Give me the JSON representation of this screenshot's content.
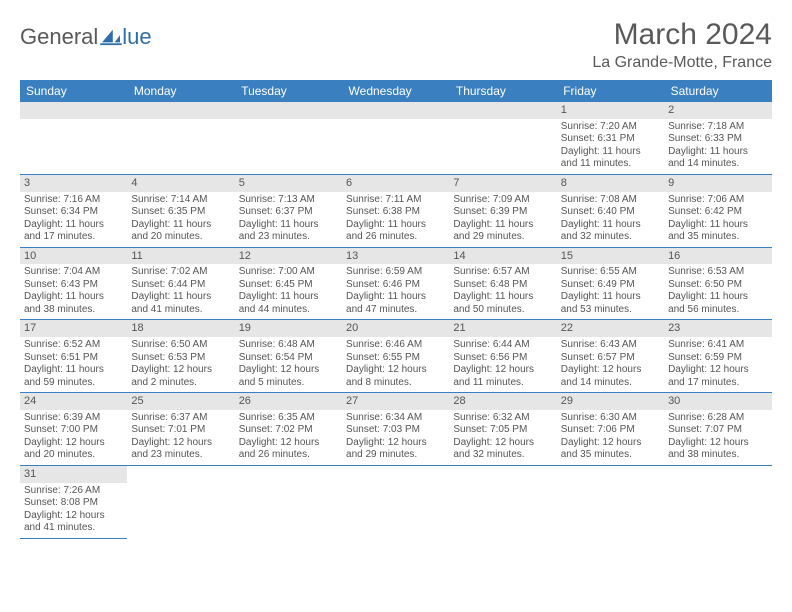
{
  "logo": {
    "general": "General",
    "blue": "lue"
  },
  "header": {
    "month": "March 2024",
    "location": "La Grande-Motte, France"
  },
  "colors": {
    "header_bg": "#3a7fbf",
    "header_text": "#ffffff",
    "daynum_bg": "#e6e6e6",
    "body_text": "#555555",
    "rule": "#3a7fbf"
  },
  "day_names": [
    "Sunday",
    "Monday",
    "Tuesday",
    "Wednesday",
    "Thursday",
    "Friday",
    "Saturday"
  ],
  "weeks": [
    [
      null,
      null,
      null,
      null,
      null,
      {
        "n": "1",
        "sr": "Sunrise: 7:20 AM",
        "ss": "Sunset: 6:31 PM",
        "d1": "Daylight: 11 hours",
        "d2": "and 11 minutes."
      },
      {
        "n": "2",
        "sr": "Sunrise: 7:18 AM",
        "ss": "Sunset: 6:33 PM",
        "d1": "Daylight: 11 hours",
        "d2": "and 14 minutes."
      }
    ],
    [
      {
        "n": "3",
        "sr": "Sunrise: 7:16 AM",
        "ss": "Sunset: 6:34 PM",
        "d1": "Daylight: 11 hours",
        "d2": "and 17 minutes."
      },
      {
        "n": "4",
        "sr": "Sunrise: 7:14 AM",
        "ss": "Sunset: 6:35 PM",
        "d1": "Daylight: 11 hours",
        "d2": "and 20 minutes."
      },
      {
        "n": "5",
        "sr": "Sunrise: 7:13 AM",
        "ss": "Sunset: 6:37 PM",
        "d1": "Daylight: 11 hours",
        "d2": "and 23 minutes."
      },
      {
        "n": "6",
        "sr": "Sunrise: 7:11 AM",
        "ss": "Sunset: 6:38 PM",
        "d1": "Daylight: 11 hours",
        "d2": "and 26 minutes."
      },
      {
        "n": "7",
        "sr": "Sunrise: 7:09 AM",
        "ss": "Sunset: 6:39 PM",
        "d1": "Daylight: 11 hours",
        "d2": "and 29 minutes."
      },
      {
        "n": "8",
        "sr": "Sunrise: 7:08 AM",
        "ss": "Sunset: 6:40 PM",
        "d1": "Daylight: 11 hours",
        "d2": "and 32 minutes."
      },
      {
        "n": "9",
        "sr": "Sunrise: 7:06 AM",
        "ss": "Sunset: 6:42 PM",
        "d1": "Daylight: 11 hours",
        "d2": "and 35 minutes."
      }
    ],
    [
      {
        "n": "10",
        "sr": "Sunrise: 7:04 AM",
        "ss": "Sunset: 6:43 PM",
        "d1": "Daylight: 11 hours",
        "d2": "and 38 minutes."
      },
      {
        "n": "11",
        "sr": "Sunrise: 7:02 AM",
        "ss": "Sunset: 6:44 PM",
        "d1": "Daylight: 11 hours",
        "d2": "and 41 minutes."
      },
      {
        "n": "12",
        "sr": "Sunrise: 7:00 AM",
        "ss": "Sunset: 6:45 PM",
        "d1": "Daylight: 11 hours",
        "d2": "and 44 minutes."
      },
      {
        "n": "13",
        "sr": "Sunrise: 6:59 AM",
        "ss": "Sunset: 6:46 PM",
        "d1": "Daylight: 11 hours",
        "d2": "and 47 minutes."
      },
      {
        "n": "14",
        "sr": "Sunrise: 6:57 AM",
        "ss": "Sunset: 6:48 PM",
        "d1": "Daylight: 11 hours",
        "d2": "and 50 minutes."
      },
      {
        "n": "15",
        "sr": "Sunrise: 6:55 AM",
        "ss": "Sunset: 6:49 PM",
        "d1": "Daylight: 11 hours",
        "d2": "and 53 minutes."
      },
      {
        "n": "16",
        "sr": "Sunrise: 6:53 AM",
        "ss": "Sunset: 6:50 PM",
        "d1": "Daylight: 11 hours",
        "d2": "and 56 minutes."
      }
    ],
    [
      {
        "n": "17",
        "sr": "Sunrise: 6:52 AM",
        "ss": "Sunset: 6:51 PM",
        "d1": "Daylight: 11 hours",
        "d2": "and 59 minutes."
      },
      {
        "n": "18",
        "sr": "Sunrise: 6:50 AM",
        "ss": "Sunset: 6:53 PM",
        "d1": "Daylight: 12 hours",
        "d2": "and 2 minutes."
      },
      {
        "n": "19",
        "sr": "Sunrise: 6:48 AM",
        "ss": "Sunset: 6:54 PM",
        "d1": "Daylight: 12 hours",
        "d2": "and 5 minutes."
      },
      {
        "n": "20",
        "sr": "Sunrise: 6:46 AM",
        "ss": "Sunset: 6:55 PM",
        "d1": "Daylight: 12 hours",
        "d2": "and 8 minutes."
      },
      {
        "n": "21",
        "sr": "Sunrise: 6:44 AM",
        "ss": "Sunset: 6:56 PM",
        "d1": "Daylight: 12 hours",
        "d2": "and 11 minutes."
      },
      {
        "n": "22",
        "sr": "Sunrise: 6:43 AM",
        "ss": "Sunset: 6:57 PM",
        "d1": "Daylight: 12 hours",
        "d2": "and 14 minutes."
      },
      {
        "n": "23",
        "sr": "Sunrise: 6:41 AM",
        "ss": "Sunset: 6:59 PM",
        "d1": "Daylight: 12 hours",
        "d2": "and 17 minutes."
      }
    ],
    [
      {
        "n": "24",
        "sr": "Sunrise: 6:39 AM",
        "ss": "Sunset: 7:00 PM",
        "d1": "Daylight: 12 hours",
        "d2": "and 20 minutes."
      },
      {
        "n": "25",
        "sr": "Sunrise: 6:37 AM",
        "ss": "Sunset: 7:01 PM",
        "d1": "Daylight: 12 hours",
        "d2": "and 23 minutes."
      },
      {
        "n": "26",
        "sr": "Sunrise: 6:35 AM",
        "ss": "Sunset: 7:02 PM",
        "d1": "Daylight: 12 hours",
        "d2": "and 26 minutes."
      },
      {
        "n": "27",
        "sr": "Sunrise: 6:34 AM",
        "ss": "Sunset: 7:03 PM",
        "d1": "Daylight: 12 hours",
        "d2": "and 29 minutes."
      },
      {
        "n": "28",
        "sr": "Sunrise: 6:32 AM",
        "ss": "Sunset: 7:05 PM",
        "d1": "Daylight: 12 hours",
        "d2": "and 32 minutes."
      },
      {
        "n": "29",
        "sr": "Sunrise: 6:30 AM",
        "ss": "Sunset: 7:06 PM",
        "d1": "Daylight: 12 hours",
        "d2": "and 35 minutes."
      },
      {
        "n": "30",
        "sr": "Sunrise: 6:28 AM",
        "ss": "Sunset: 7:07 PM",
        "d1": "Daylight: 12 hours",
        "d2": "and 38 minutes."
      }
    ],
    [
      {
        "n": "31",
        "sr": "Sunrise: 7:26 AM",
        "ss": "Sunset: 8:08 PM",
        "d1": "Daylight: 12 hours",
        "d2": "and 41 minutes."
      },
      null,
      null,
      null,
      null,
      null,
      null
    ]
  ]
}
